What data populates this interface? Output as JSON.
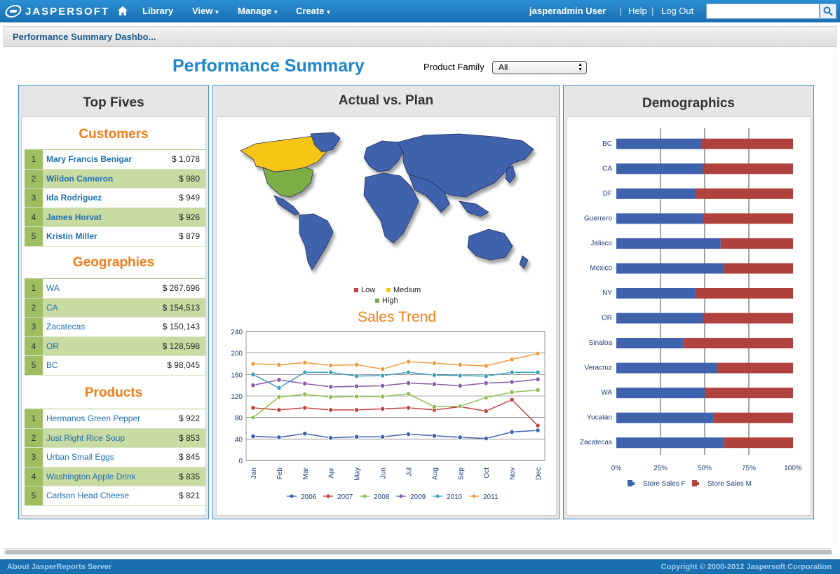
{
  "app": {
    "logo_text": "JASPERSOFT",
    "nav": [
      {
        "label": "Library",
        "has_menu": false
      },
      {
        "label": "View",
        "has_menu": true
      },
      {
        "label": "Manage",
        "has_menu": true
      },
      {
        "label": "Create",
        "has_menu": true
      }
    ],
    "user": "jasperadmin User",
    "help": "Help",
    "logout": "Log Out",
    "search_placeholder": ""
  },
  "titlebar": {
    "text": "Performance Summary Dashbo..."
  },
  "dashboard": {
    "title": "Performance Summary",
    "product_family_label": "Product Family",
    "product_family_value": "All"
  },
  "top_fives": {
    "title": "Top Fives",
    "customers": {
      "title": "Customers",
      "rows": [
        {
          "rank": "1",
          "name": "Mary Francis Benigar",
          "value": "$ 1,078"
        },
        {
          "rank": "2",
          "name": "Wildon Cameron",
          "value": "$ 980"
        },
        {
          "rank": "3",
          "name": "Ida Rodriguez",
          "value": "$ 949"
        },
        {
          "rank": "4",
          "name": "James Horvat",
          "value": "$ 926"
        },
        {
          "rank": "5",
          "name": "Kristin Miller",
          "value": "$ 879"
        }
      ]
    },
    "geographies": {
      "title": "Geographies",
      "rows": [
        {
          "rank": "1",
          "name": "WA",
          "value": "$ 267,696"
        },
        {
          "rank": "2",
          "name": "CA",
          "value": "$ 154,513"
        },
        {
          "rank": "3",
          "name": "Zacatecas",
          "value": "$ 150,143"
        },
        {
          "rank": "4",
          "name": "OR",
          "value": "$ 128,598"
        },
        {
          "rank": "5",
          "name": "BC",
          "value": "$ 98,045"
        }
      ]
    },
    "products": {
      "title": "Products",
      "rows": [
        {
          "rank": "1",
          "name": "Hermanos Green Pepper",
          "value": "$ 922"
        },
        {
          "rank": "2",
          "name": "Just Right Rice Soup",
          "value": "$ 853"
        },
        {
          "rank": "3",
          "name": "Urban Small Eggs",
          "value": "$ 845"
        },
        {
          "rank": "4",
          "name": "Washington Apple Drink",
          "value": "$ 835"
        },
        {
          "rank": "5",
          "name": "Carlson Head Cheese",
          "value": "$ 821"
        }
      ]
    }
  },
  "actual_vs_plan": {
    "title": "Actual vs. Plan",
    "map_legend": [
      {
        "label": "Low",
        "color": "#c0403d"
      },
      {
        "label": "Medium",
        "color": "#f7c518"
      },
      {
        "label": "High",
        "color": "#7cae45"
      }
    ],
    "colors": {
      "ocean_land": "#3f62ac",
      "medium": "#f7c518",
      "high": "#7cae45"
    }
  },
  "demographics": {
    "title": "Demographics"
  },
  "chart_data": [
    {
      "type": "line",
      "title": "Sales Trend",
      "categories": [
        "Jan",
        "Feb",
        "Mar",
        "Apr",
        "May",
        "Jun",
        "Jul",
        "Aug",
        "Sep",
        "Oct",
        "Nov",
        "Dec"
      ],
      "ylim": [
        0,
        240
      ],
      "yticks": [
        0,
        40,
        80,
        120,
        160,
        200,
        240
      ],
      "series": [
        {
          "name": "2006",
          "color": "#3f62ac",
          "values": [
            45,
            43,
            50,
            42,
            44,
            44,
            49,
            46,
            43,
            41,
            53,
            56
          ]
        },
        {
          "name": "2007",
          "color": "#c0403d",
          "values": [
            98,
            94,
            98,
            94,
            94,
            96,
            98,
            94,
            100,
            92,
            113,
            65
          ]
        },
        {
          "name": "2008",
          "color": "#8fbf4f",
          "values": [
            80,
            118,
            123,
            118,
            119,
            119,
            124,
            100,
            101,
            117,
            127,
            131
          ]
        },
        {
          "name": "2009",
          "color": "#8a5aa8",
          "values": [
            140,
            150,
            143,
            137,
            138,
            139,
            144,
            142,
            139,
            144,
            146,
            151
          ]
        },
        {
          "name": "2010",
          "color": "#3aa0c0",
          "values": [
            160,
            135,
            164,
            164,
            157,
            158,
            164,
            159,
            158,
            157,
            164,
            164
          ]
        },
        {
          "name": "2011",
          "color": "#f09a3a",
          "values": [
            180,
            178,
            182,
            177,
            178,
            170,
            184,
            181,
            178,
            176,
            188,
            199
          ]
        }
      ],
      "grid": true,
      "legend": "bottom"
    },
    {
      "type": "bar",
      "orientation": "horizontal-stacked-100",
      "categories": [
        "BC",
        "CA",
        "DF",
        "Guerrero",
        "Jalisco",
        "Mexico",
        "NY",
        "OR",
        "Sinaloa",
        "Veracruz",
        "WA",
        "Yucatan",
        "Zacatecas"
      ],
      "xticks": [
        "0%",
        "25%",
        "50%",
        "75%",
        "100%"
      ],
      "series": [
        {
          "name": "Store Sales F",
          "color": "#3f62ac",
          "values": [
            48,
            49,
            45,
            49,
            59,
            61,
            45,
            49,
            38,
            57,
            50,
            55,
            61
          ]
        },
        {
          "name": "Store Sales M",
          "color": "#b0423e",
          "values": [
            52,
            51,
            55,
            51,
            41,
            39,
            55,
            51,
            62,
            43,
            50,
            45,
            39
          ]
        }
      ],
      "legend": "bottom"
    }
  ],
  "footer": {
    "left": "About JasperReports Server",
    "right": "Copyright © 2000-2012 Jaspersoft Corporation"
  }
}
